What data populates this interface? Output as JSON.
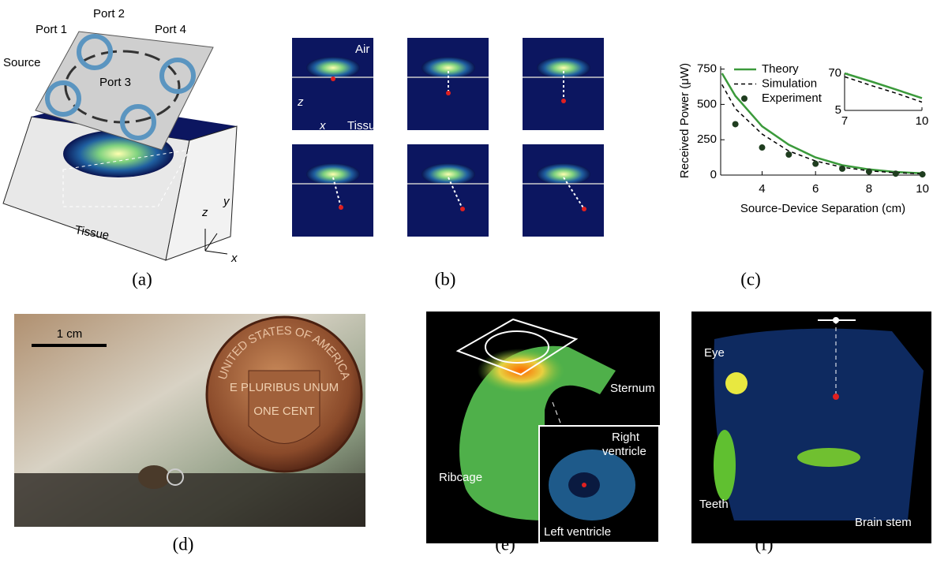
{
  "panels": [
    {
      "label": "(a)",
      "annotations": [
        "Port 1",
        "Port 2",
        "Port 4",
        "Source",
        "Port 3",
        "Tissue",
        "z",
        "y",
        "x"
      ]
    },
    {
      "label": "(b)",
      "annotations": [
        "Air",
        "z",
        "x",
        "Tissue"
      ]
    },
    {
      "label": "(c)"
    },
    {
      "label": "(d)",
      "annotations": [
        "1 cm",
        "UNITED STATES OF AMERICA",
        "E PLURIBUS UNUM",
        "ONE CENT"
      ]
    },
    {
      "label": "(e)",
      "annotations": [
        "Sternum",
        "Right",
        "ventricle",
        "Ribcage",
        "Left ventricle"
      ]
    },
    {
      "label": "(f)",
      "annotations": [
        "Eye",
        "Teeth",
        "Brain stem"
      ]
    }
  ],
  "chart_data": {
    "type": "line",
    "x_label": "Source-Device Separation (cm)",
    "y_label": "Received Power (μW)",
    "x": [
      2.5,
      3,
      4,
      5,
      6,
      7,
      8,
      9,
      10
    ],
    "series": [
      {
        "name": "Theory",
        "color": "#3b9a3b",
        "style": "solid",
        "values": [
          720,
          560,
          345,
          215,
          125,
          70,
          40,
          22,
          12
        ]
      },
      {
        "name": "Simulation",
        "color": "#000000",
        "style": "dashed",
        "values": [
          640,
          470,
          290,
          170,
          100,
          55,
          30,
          17,
          9
        ]
      },
      {
        "name": "Experiment",
        "color": "#1f3d1f",
        "style": "markers",
        "values": [
          null,
          360,
          195,
          145,
          80,
          45,
          25,
          10,
          5
        ]
      }
    ],
    "xlim": [
      2.45,
      10.1
    ],
    "ylim": [
      0,
      770
    ],
    "xticks": [
      4,
      6,
      8,
      10
    ],
    "yticks": [
      0,
      250,
      500,
      750
    ],
    "legend": "top-center",
    "inset": {
      "xlim": [
        7,
        10
      ],
      "ylim": [
        5,
        70
      ],
      "xticks": [
        7,
        10
      ],
      "yticks": [
        5,
        70
      ],
      "log_y": true
    }
  }
}
